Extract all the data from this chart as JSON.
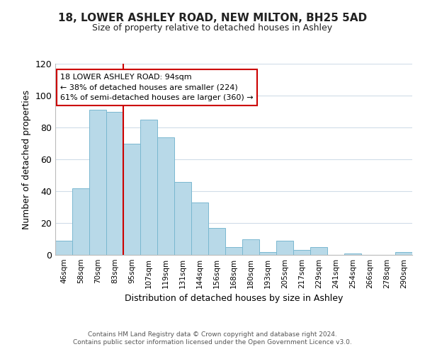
{
  "title": "18, LOWER ASHLEY ROAD, NEW MILTON, BH25 5AD",
  "subtitle": "Size of property relative to detached houses in Ashley",
  "xlabel": "Distribution of detached houses by size in Ashley",
  "ylabel": "Number of detached properties",
  "bin_labels": [
    "46sqm",
    "58sqm",
    "70sqm",
    "83sqm",
    "95sqm",
    "107sqm",
    "119sqm",
    "131sqm",
    "144sqm",
    "156sqm",
    "168sqm",
    "180sqm",
    "193sqm",
    "205sqm",
    "217sqm",
    "229sqm",
    "241sqm",
    "254sqm",
    "266sqm",
    "278sqm",
    "290sqm"
  ],
  "bar_values": [
    9,
    42,
    91,
    90,
    70,
    85,
    74,
    46,
    33,
    17,
    5,
    10,
    2,
    9,
    3,
    5,
    0,
    1,
    0,
    0,
    2
  ],
  "bar_color": "#b8d9e8",
  "bar_edge_color": "#7ab8d0",
  "vline_x": 4,
  "vline_color": "#cc0000",
  "ylim": [
    0,
    120
  ],
  "yticks": [
    0,
    20,
    40,
    60,
    80,
    100,
    120
  ],
  "annotation_title": "18 LOWER ASHLEY ROAD: 94sqm",
  "annotation_line1": "← 38% of detached houses are smaller (224)",
  "annotation_line2": "61% of semi-detached houses are larger (360) →",
  "annotation_box_color": "#ffffff",
  "annotation_box_edge": "#cc0000",
  "footer_line1": "Contains HM Land Registry data © Crown copyright and database right 2024.",
  "footer_line2": "Contains public sector information licensed under the Open Government Licence v3.0.",
  "background_color": "#ffffff",
  "grid_color": "#d0dce8"
}
